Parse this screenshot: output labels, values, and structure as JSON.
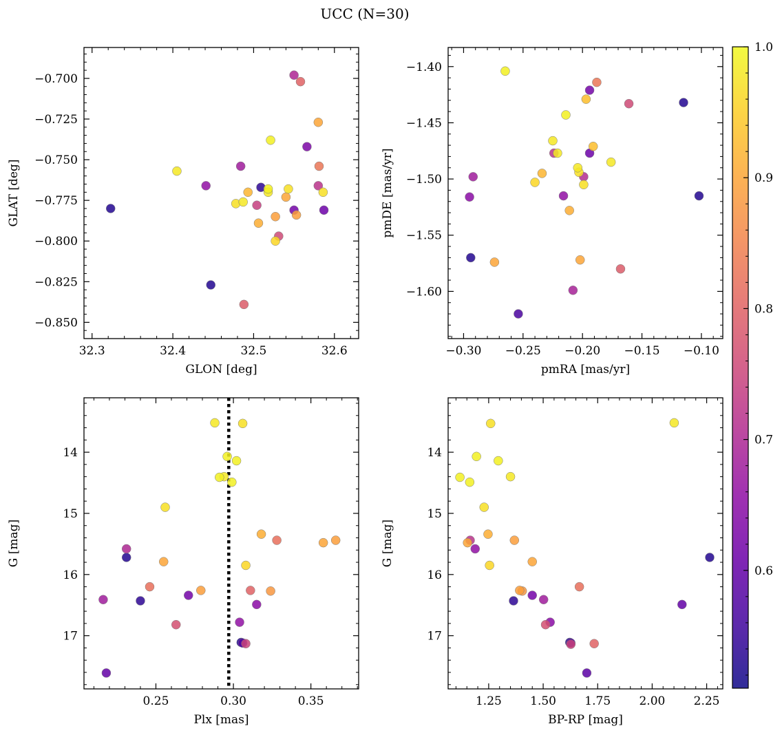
{
  "title": "UCC (N=30)",
  "colorbar": {
    "range": [
      0.51,
      1.0
    ],
    "ticks": [
      0.6,
      0.7,
      0.8,
      0.9,
      1.0
    ],
    "tick_labels": [
      "0.6",
      "0.7",
      "0.8",
      "0.9",
      "1.0"
    ],
    "colormap": "plasma"
  },
  "chart_data": [
    {
      "type": "scatter",
      "xlabel": "GLON [deg]",
      "ylabel": "GLAT [deg]",
      "xlim": [
        32.29,
        32.63
      ],
      "ylim": [
        -0.86,
        -0.681
      ],
      "x_invert": false,
      "y_invert": false,
      "xticks": [
        32.3,
        32.4,
        32.5,
        32.6
      ],
      "xtick_labels": [
        "32.3",
        "32.4",
        "32.5",
        "32.6"
      ],
      "yticks": [
        -0.85,
        -0.825,
        -0.8,
        -0.775,
        -0.75,
        -0.725,
        -0.7
      ],
      "ytick_labels": [
        "−0.850",
        "−0.825",
        "−0.800",
        "−0.775",
        "−0.750",
        "−0.725",
        "−0.700"
      ],
      "points": [
        {
          "x": 32.521,
          "y": -0.738,
          "c": 0.99
        },
        {
          "x": 32.405,
          "y": -0.757,
          "c": 0.98
        },
        {
          "x": 32.478,
          "y": -0.777,
          "c": 0.97
        },
        {
          "x": 32.487,
          "y": -0.776,
          "c": 0.98
        },
        {
          "x": 32.518,
          "y": -0.768,
          "c": 0.99
        },
        {
          "x": 32.518,
          "y": -0.77,
          "c": 0.98
        },
        {
          "x": 32.586,
          "y": -0.77,
          "c": 0.97
        },
        {
          "x": 32.543,
          "y": -0.768,
          "c": 0.97
        },
        {
          "x": 32.527,
          "y": -0.8,
          "c": 0.96
        },
        {
          "x": 32.493,
          "y": -0.77,
          "c": 0.92
        },
        {
          "x": 32.506,
          "y": -0.789,
          "c": 0.91
        },
        {
          "x": 32.54,
          "y": -0.773,
          "c": 0.9
        },
        {
          "x": 32.527,
          "y": -0.785,
          "c": 0.89
        },
        {
          "x": 32.553,
          "y": -0.784,
          "c": 0.89
        },
        {
          "x": 32.58,
          "y": -0.727,
          "c": 0.9
        },
        {
          "x": 32.581,
          "y": -0.754,
          "c": 0.83
        },
        {
          "x": 32.558,
          "y": -0.702,
          "c": 0.8
        },
        {
          "x": 32.488,
          "y": -0.839,
          "c": 0.79
        },
        {
          "x": 32.531,
          "y": -0.797,
          "c": 0.76
        },
        {
          "x": 32.504,
          "y": -0.778,
          "c": 0.74
        },
        {
          "x": 32.58,
          "y": -0.766,
          "c": 0.72
        },
        {
          "x": 32.55,
          "y": -0.698,
          "c": 0.7
        },
        {
          "x": 32.484,
          "y": -0.754,
          "c": 0.68
        },
        {
          "x": 32.441,
          "y": -0.766,
          "c": 0.66
        },
        {
          "x": 32.566,
          "y": -0.742,
          "c": 0.63
        },
        {
          "x": 32.55,
          "y": -0.781,
          "c": 0.62
        },
        {
          "x": 32.587,
          "y": -0.781,
          "c": 0.61
        },
        {
          "x": 32.509,
          "y": -0.767,
          "c": 0.54
        },
        {
          "x": 32.447,
          "y": -0.827,
          "c": 0.53
        },
        {
          "x": 32.323,
          "y": -0.78,
          "c": 0.53
        }
      ]
    },
    {
      "type": "scatter",
      "xlabel": "pmRA [mas/yr]",
      "ylabel": "pmDE [mas/yr]",
      "xlim": [
        -0.313,
        -0.082
      ],
      "ylim": [
        -1.642,
        -1.383
      ],
      "x_invert": false,
      "y_invert": false,
      "xticks": [
        -0.3,
        -0.25,
        -0.2,
        -0.15,
        -0.1
      ],
      "xtick_labels": [
        "−0.30",
        "−0.25",
        "−0.20",
        "−0.15",
        "−0.10"
      ],
      "yticks": [
        -1.6,
        -1.55,
        -1.5,
        -1.45,
        -1.4
      ],
      "ytick_labels": [
        "−1.60",
        "−1.55",
        "−1.50",
        "−1.45",
        "−1.40"
      ],
      "points": [
        {
          "x": -0.265,
          "y": -1.404,
          "c": 0.99
        },
        {
          "x": -0.214,
          "y": -1.443,
          "c": 0.99
        },
        {
          "x": -0.225,
          "y": -1.466,
          "c": 0.98
        },
        {
          "x": -0.221,
          "y": -1.477,
          "c": 0.98
        },
        {
          "x": -0.176,
          "y": -1.485,
          "c": 0.98
        },
        {
          "x": -0.204,
          "y": -1.49,
          "c": 0.98
        },
        {
          "x": -0.203,
          "y": -1.494,
          "c": 0.97
        },
        {
          "x": -0.199,
          "y": -1.505,
          "c": 0.97
        },
        {
          "x": -0.24,
          "y": -1.503,
          "c": 0.96
        },
        {
          "x": -0.197,
          "y": -1.429,
          "c": 0.93
        },
        {
          "x": -0.191,
          "y": -1.471,
          "c": 0.93
        },
        {
          "x": -0.234,
          "y": -1.495,
          "c": 0.92
        },
        {
          "x": -0.211,
          "y": -1.528,
          "c": 0.91
        },
        {
          "x": -0.274,
          "y": -1.574,
          "c": 0.9
        },
        {
          "x": -0.202,
          "y": -1.572,
          "c": 0.9
        },
        {
          "x": -0.188,
          "y": -1.414,
          "c": 0.83
        },
        {
          "x": -0.168,
          "y": -1.58,
          "c": 0.79
        },
        {
          "x": -0.161,
          "y": -1.433,
          "c": 0.76
        },
        {
          "x": -0.224,
          "y": -1.477,
          "c": 0.72
        },
        {
          "x": -0.199,
          "y": -1.498,
          "c": 0.71
        },
        {
          "x": -0.208,
          "y": -1.599,
          "c": 0.69
        },
        {
          "x": -0.292,
          "y": -1.498,
          "c": 0.68
        },
        {
          "x": -0.216,
          "y": -1.515,
          "c": 0.66
        },
        {
          "x": -0.295,
          "y": -1.516,
          "c": 0.65
        },
        {
          "x": -0.194,
          "y": -1.421,
          "c": 0.62
        },
        {
          "x": -0.194,
          "y": -1.477,
          "c": 0.61
        },
        {
          "x": -0.254,
          "y": -1.62,
          "c": 0.57
        },
        {
          "x": -0.294,
          "y": -1.57,
          "c": 0.53
        },
        {
          "x": -0.115,
          "y": -1.432,
          "c": 0.53
        },
        {
          "x": -0.102,
          "y": -1.515,
          "c": 0.53
        }
      ]
    },
    {
      "type": "scatter",
      "xlabel": "Plx [mas]",
      "ylabel": "G [mag]",
      "xlim": [
        0.2036,
        0.3808
      ],
      "ylim": [
        17.87,
        13.11
      ],
      "x_invert": false,
      "y_invert": true,
      "xticks": [
        0.25,
        0.3,
        0.35
      ],
      "xtick_labels": [
        "0.25",
        "0.30",
        "0.35"
      ],
      "yticks": [
        14,
        15,
        16,
        17
      ],
      "ytick_labels": [
        "14",
        "15",
        "16",
        "17"
      ],
      "vline": {
        "x": 0.297,
        "style": "dotted",
        "color": "#000000"
      },
      "points": [
        {
          "x": 0.288,
          "y": 13.52,
          "c": 0.98
        },
        {
          "x": 0.306,
          "y": 13.53,
          "c": 0.97
        },
        {
          "x": 0.296,
          "y": 14.07,
          "c": 0.99
        },
        {
          "x": 0.302,
          "y": 14.14,
          "c": 0.99
        },
        {
          "x": 0.291,
          "y": 14.41,
          "c": 0.99
        },
        {
          "x": 0.294,
          "y": 14.4,
          "c": 0.98
        },
        {
          "x": 0.299,
          "y": 14.49,
          "c": 0.99
        },
        {
          "x": 0.256,
          "y": 14.9,
          "c": 0.97
        },
        {
          "x": 0.308,
          "y": 15.85,
          "c": 0.96
        },
        {
          "x": 0.318,
          "y": 15.34,
          "c": 0.91
        },
        {
          "x": 0.358,
          "y": 15.48,
          "c": 0.9
        },
        {
          "x": 0.366,
          "y": 15.44,
          "c": 0.89
        },
        {
          "x": 0.255,
          "y": 15.79,
          "c": 0.9
        },
        {
          "x": 0.279,
          "y": 16.26,
          "c": 0.89
        },
        {
          "x": 0.324,
          "y": 16.27,
          "c": 0.88
        },
        {
          "x": 0.328,
          "y": 15.44,
          "c": 0.82
        },
        {
          "x": 0.246,
          "y": 16.2,
          "c": 0.82
        },
        {
          "x": 0.311,
          "y": 16.26,
          "c": 0.8
        },
        {
          "x": 0.263,
          "y": 16.82,
          "c": 0.77
        },
        {
          "x": 0.308,
          "y": 17.13,
          "c": 0.75
        },
        {
          "x": 0.231,
          "y": 15.58,
          "c": 0.7
        },
        {
          "x": 0.216,
          "y": 16.41,
          "c": 0.68
        },
        {
          "x": 0.304,
          "y": 16.78,
          "c": 0.66
        },
        {
          "x": 0.315,
          "y": 16.49,
          "c": 0.65
        },
        {
          "x": 0.271,
          "y": 16.34,
          "c": 0.62
        },
        {
          "x": 0.218,
          "y": 17.61,
          "c": 0.6
        },
        {
          "x": 0.306,
          "y": 17.12,
          "c": 0.58
        },
        {
          "x": 0.231,
          "y": 15.72,
          "c": 0.53
        },
        {
          "x": 0.24,
          "y": 16.43,
          "c": 0.54
        },
        {
          "x": 0.305,
          "y": 17.11,
          "c": 0.53
        }
      ]
    },
    {
      "type": "scatter",
      "xlabel": "BP-RP [mag]",
      "ylabel": "G [mag]",
      "xlim": [
        1.064,
        2.324
      ],
      "ylim": [
        17.87,
        13.11
      ],
      "x_invert": false,
      "y_invert": true,
      "xticks": [
        1.25,
        1.5,
        1.75,
        2.0,
        2.25
      ],
      "xtick_labels": [
        "1.25",
        "1.50",
        "1.75",
        "2.00",
        "2.25"
      ],
      "yticks": [
        14,
        15,
        16,
        17
      ],
      "ytick_labels": [
        "14",
        "15",
        "16",
        "17"
      ],
      "points": [
        {
          "x": 2.101,
          "y": 13.52,
          "c": 0.98
        },
        {
          "x": 1.259,
          "y": 13.53,
          "c": 0.97
        },
        {
          "x": 1.194,
          "y": 14.07,
          "c": 0.99
        },
        {
          "x": 1.294,
          "y": 14.14,
          "c": 0.99
        },
        {
          "x": 1.118,
          "y": 14.41,
          "c": 0.99
        },
        {
          "x": 1.35,
          "y": 14.4,
          "c": 0.98
        },
        {
          "x": 1.163,
          "y": 14.49,
          "c": 0.99
        },
        {
          "x": 1.229,
          "y": 14.9,
          "c": 0.97
        },
        {
          "x": 1.254,
          "y": 15.85,
          "c": 0.96
        },
        {
          "x": 1.247,
          "y": 15.34,
          "c": 0.91
        },
        {
          "x": 1.153,
          "y": 15.48,
          "c": 0.9
        },
        {
          "x": 1.368,
          "y": 15.44,
          "c": 0.89
        },
        {
          "x": 1.45,
          "y": 15.79,
          "c": 0.9
        },
        {
          "x": 1.392,
          "y": 16.26,
          "c": 0.89
        },
        {
          "x": 1.404,
          "y": 16.27,
          "c": 0.88
        },
        {
          "x": 1.666,
          "y": 16.2,
          "c": 0.82
        },
        {
          "x": 1.734,
          "y": 17.13,
          "c": 0.8
        },
        {
          "x": 1.511,
          "y": 16.82,
          "c": 0.77
        },
        {
          "x": 1.627,
          "y": 17.14,
          "c": 0.75
        },
        {
          "x": 1.165,
          "y": 15.44,
          "c": 0.72
        },
        {
          "x": 1.502,
          "y": 16.41,
          "c": 0.68
        },
        {
          "x": 1.188,
          "y": 15.58,
          "c": 0.66
        },
        {
          "x": 1.532,
          "y": 16.78,
          "c": 0.65
        },
        {
          "x": 1.45,
          "y": 16.34,
          "c": 0.62
        },
        {
          "x": 2.137,
          "y": 16.49,
          "c": 0.6
        },
        {
          "x": 1.7,
          "y": 17.61,
          "c": 0.59
        },
        {
          "x": 1.627,
          "y": 17.12,
          "c": 0.58
        },
        {
          "x": 2.264,
          "y": 15.72,
          "c": 0.53
        },
        {
          "x": 1.364,
          "y": 16.43,
          "c": 0.54
        },
        {
          "x": 1.622,
          "y": 17.11,
          "c": 0.53
        }
      ]
    }
  ]
}
